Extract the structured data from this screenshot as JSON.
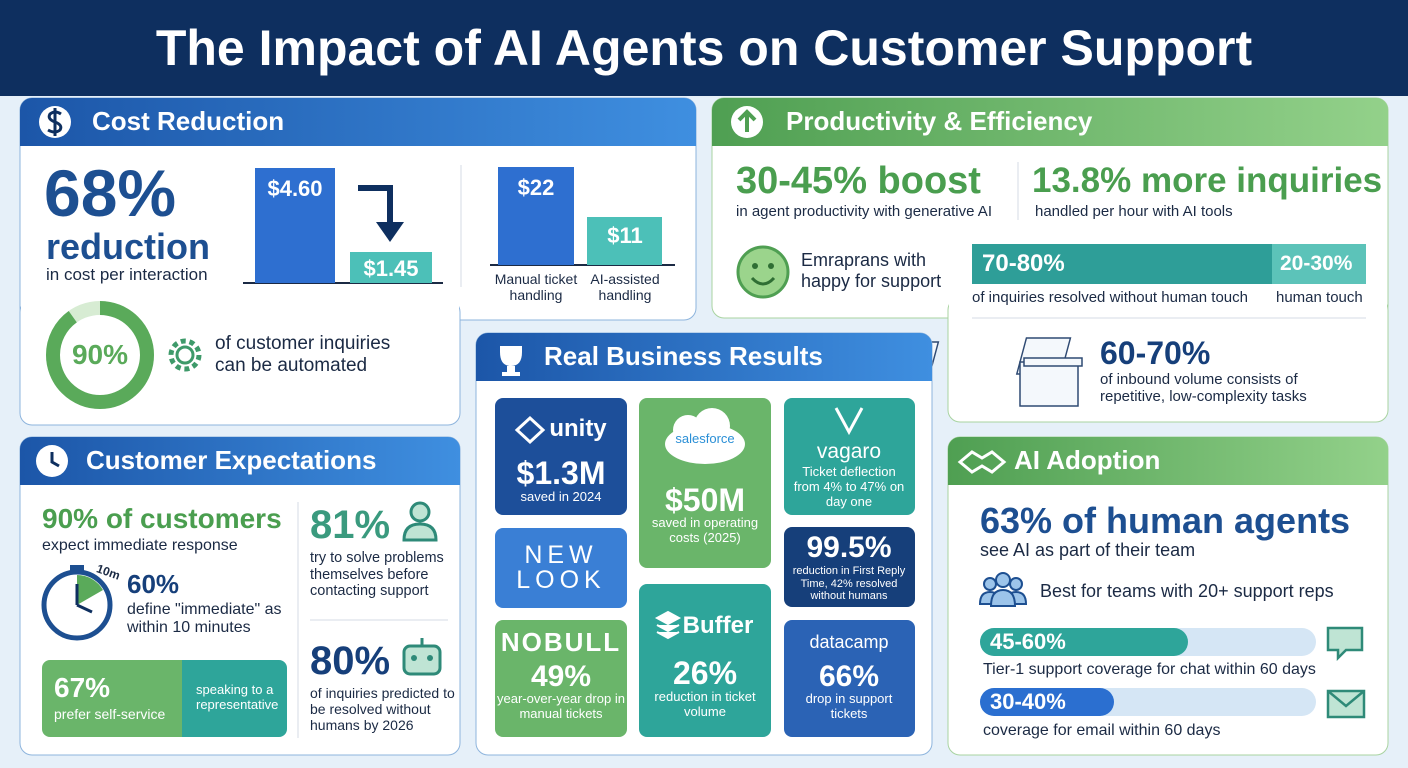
{
  "title": "The Impact of AI Agents on Customer Support",
  "cost": {
    "heading": "Cost Reduction",
    "percent": "68%",
    "label": "reduction",
    "desc": "in cost per interaction",
    "before": "$4.60",
    "after": "$1.45",
    "manual_value": "$22",
    "ai_value": "$11",
    "manual_label": "Manual ticket handling",
    "ai_label": "AI-assisted handling",
    "automation_percent": "90%",
    "automation_desc": "of customer inquiries can be automated"
  },
  "productivity": {
    "heading": "Productivity & Efficiency",
    "boost": "30-45% boost",
    "boost_desc": "in agent productivity with generative AI",
    "inquiries": "13.8% more inquiries",
    "inquiries_desc": "handled per hour with AI tools",
    "happy_desc": "Emraprans with happy for support",
    "resolved_percent": "70-80%",
    "human_percent": "20-30%",
    "resolved_desc": "of inquiries resolved without human touch",
    "human_desc": "human touch",
    "inbound_percent": "60-70%",
    "inbound_desc": "of inbound volume consists of repetitive, low-complexity tasks"
  },
  "expectations": {
    "heading": "Customer Expectations",
    "immediate": "90% of customers",
    "immediate_desc": "expect immediate response",
    "timer_label": "10m",
    "define_percent": "60%",
    "define_desc": "define \"immediate\" as within 10 minutes",
    "self_service_percent": "67%",
    "self_service_desc": "prefer self-service",
    "representative_desc": "speaking to a representative",
    "self_solve_percent": "81%",
    "self_solve_desc": "try to solve problems themselves before contacting support",
    "predicted_percent": "80%",
    "predicted_desc": "of inquiries predicted to be resolved without humans by 2026"
  },
  "results": {
    "heading": "Real Business Results",
    "cards": [
      {
        "brand": "unity",
        "value": "$1.3M",
        "desc": "saved in 2024"
      },
      {
        "brand": "NEW LOOK"
      },
      {
        "brand": "NOBULL",
        "value": "49%",
        "desc": "year-over-year drop in manual tickets"
      },
      {
        "brand": "salesforce",
        "value": "$50M",
        "desc": "saved in operating costs (2025)"
      },
      {
        "brand": "Buffer",
        "value": "26%",
        "desc": "reduction in ticket volume"
      },
      {
        "brand": "vagaro",
        "desc": "Ticket deflection from 4% to 47% on day one"
      },
      {
        "value": "99.5%",
        "desc": "reduction in First Reply Time, 42% resolved without humans"
      },
      {
        "brand": "datacamp",
        "value": "66%",
        "desc": "drop in support tickets"
      }
    ]
  },
  "adoption": {
    "heading": "AI Adoption",
    "percent": "63% of human agents",
    "desc": "see AI as part of their team",
    "teams": "Best for teams with 20+ support reps",
    "chat_percent": "45-60%",
    "chat_desc": "Tier-1 support coverage for chat within 60 days",
    "email_percent": "30-40%",
    "email_desc": "coverage for email within 60 days"
  }
}
